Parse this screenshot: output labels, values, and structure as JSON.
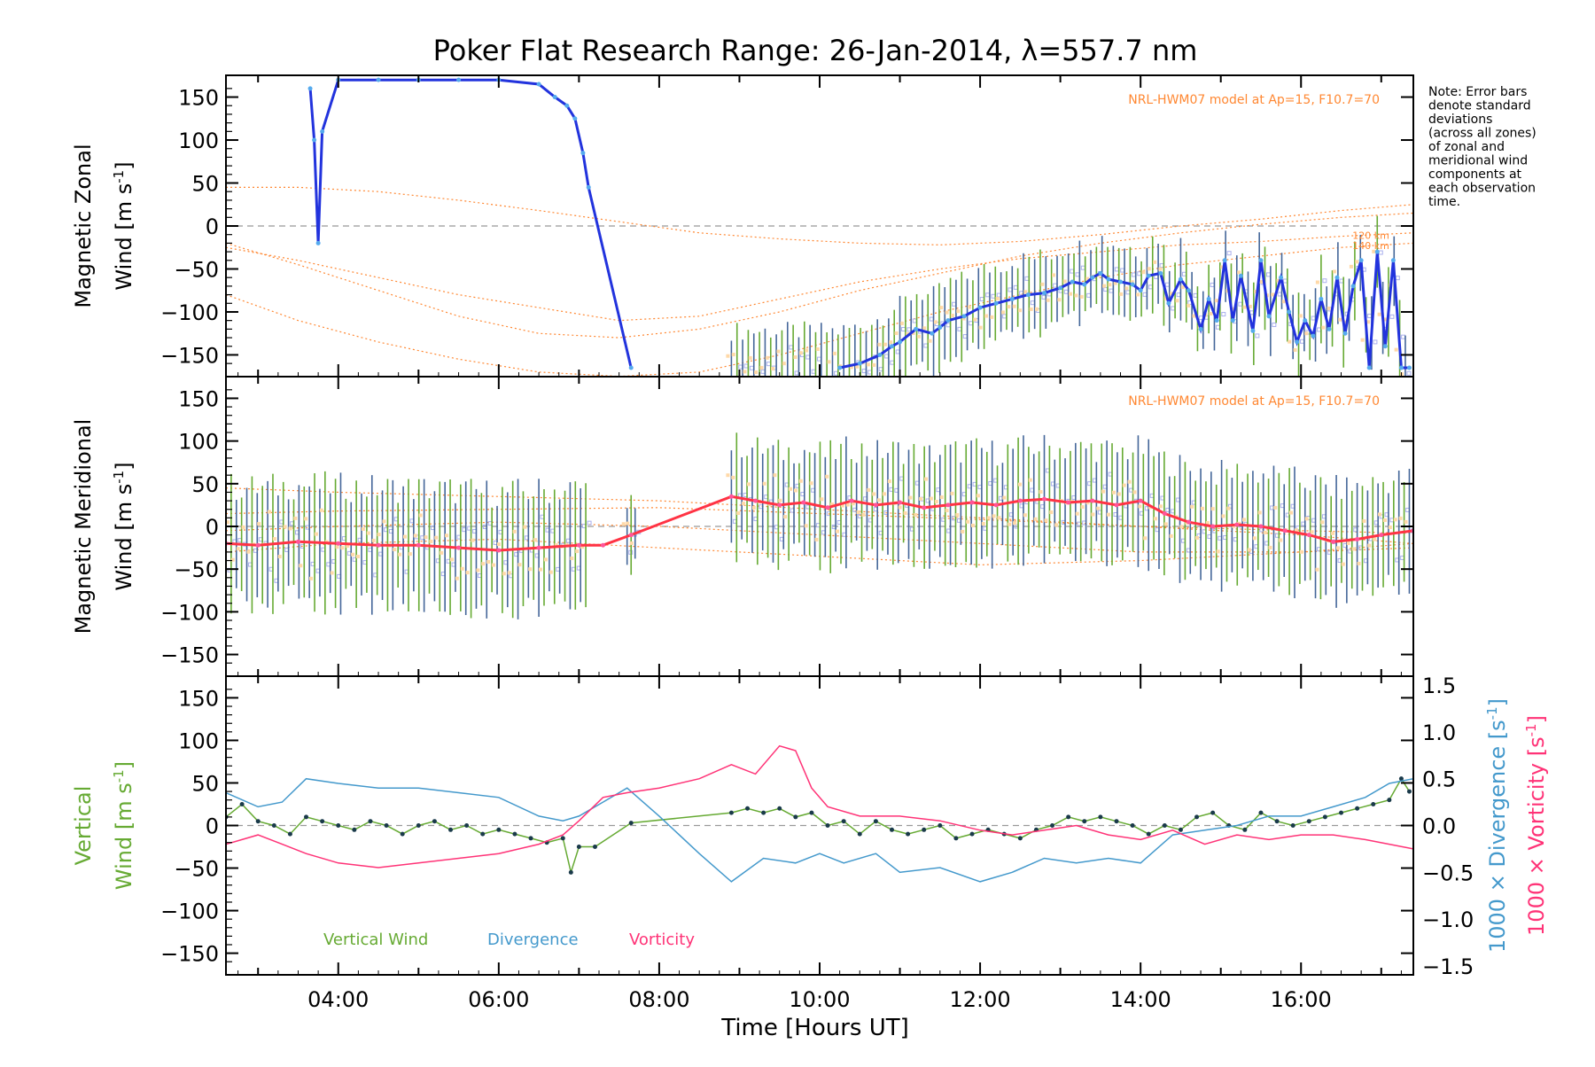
{
  "figure": {
    "title": "Poker Flat Research Range: 26-Jan-2014, λ=557.7 nm",
    "note_lines": [
      "Note: Error bars",
      "denote standard",
      "deviations",
      "(across all zones)",
      "of zonal and",
      "meridional wind",
      "components at",
      "each observation",
      "time."
    ],
    "xlabel": "Time [Hours UT]",
    "colors": {
      "zonal_line": "#2233dd",
      "zonal_points": "#55aaee",
      "meridional_line": "#ff3344",
      "meridional_points": "#ff5599",
      "errbar_green": "#66aa33",
      "errbar_blue": "#446699",
      "scatter_lavender": "#aab0ee",
      "scatter_peach": "#ffd9a8",
      "model": "#ff8833",
      "vertical": "#66aa33",
      "vertical_markers": "#1a3a4a",
      "divergence": "#4499cc",
      "vorticity": "#ff3377",
      "zero_line": "#999999"
    }
  },
  "chart_data": [
    {
      "id": "zonal",
      "type": "line",
      "ylabel_line1": "Magnetic Zonal",
      "ylabel_line2": "Wind [m s",
      "ylabel_sup": "-1",
      "ylabel_end": "]",
      "model_label": "NRL-HWM07 model at Ap=15, F10.7=70",
      "model_curve_labels": [
        "120 km",
        "140 km"
      ],
      "xlim": [
        2.6,
        17.4
      ],
      "ylim": [
        -165,
        165
      ],
      "yticks": [
        -150,
        -100,
        -50,
        0,
        50,
        100,
        150
      ],
      "series": [
        {
          "style": "zonal",
          "x": [
            3.65,
            3.7,
            3.75,
            3.8,
            4.0,
            4.5,
            5.0,
            5.5,
            6.0,
            6.5,
            6.7,
            6.85,
            6.95,
            7.05,
            7.12,
            7.65
          ],
          "y": [
            160,
            100,
            -20,
            110,
            170,
            170,
            170,
            170,
            170,
            165,
            150,
            140,
            125,
            85,
            45,
            -165
          ],
          "gaps_after": [
            0
          ]
        },
        {
          "style": "zonal",
          "x": [
            10.25,
            10.5,
            10.75,
            10.9,
            11.0,
            11.2,
            11.4,
            11.5,
            11.6,
            11.8,
            12.0,
            12.2,
            12.4,
            12.6,
            12.8,
            13.0,
            13.15,
            13.3,
            13.4,
            13.5,
            13.6,
            13.75,
            13.9,
            14.0,
            14.1,
            14.25,
            14.35,
            14.5,
            14.6,
            14.75,
            14.85,
            14.95,
            15.05,
            15.15,
            15.25,
            15.4,
            15.5,
            15.6,
            15.75,
            15.85,
            15.95,
            16.05,
            16.15,
            16.25,
            16.35,
            16.45,
            16.55,
            16.65,
            16.75,
            16.85,
            16.95,
            17.05,
            17.15,
            17.25,
            17.35
          ],
          "y": [
            -165,
            -160,
            -150,
            -140,
            -135,
            -120,
            -125,
            -118,
            -110,
            -105,
            -95,
            -90,
            -85,
            -80,
            -78,
            -72,
            -65,
            -68,
            -60,
            -55,
            -62,
            -65,
            -68,
            -75,
            -58,
            -55,
            -90,
            -62,
            -75,
            -120,
            -85,
            -110,
            -40,
            -110,
            -58,
            -122,
            -40,
            -105,
            -60,
            -100,
            -135,
            -110,
            -128,
            -85,
            -120,
            -60,
            -125,
            -70,
            -40,
            -165,
            -30,
            -140,
            -40,
            -165,
            -165
          ]
        }
      ],
      "model_curves": [
        {
          "x": [
            2.6,
            3.5,
            4.5,
            5.5,
            6.5,
            7.5,
            8.5,
            9.5,
            10.5,
            11.5,
            12.5,
            13.5,
            14.5,
            15.5,
            16.5,
            17.4
          ],
          "y": [
            45,
            45,
            40,
            30,
            18,
            5,
            -8,
            -15,
            -20,
            -22,
            -18,
            -10,
            0,
            8,
            18,
            25
          ]
        },
        {
          "x": [
            2.6,
            3.5,
            4.5,
            5.5,
            6.5,
            7.5,
            8.5,
            9.5,
            10.5,
            11.5,
            12.5,
            13.5,
            14.5,
            15.5,
            16.5,
            17.4
          ],
          "y": [
            -20,
            -45,
            -75,
            -105,
            -125,
            -130,
            -120,
            -100,
            -75,
            -55,
            -35,
            -20,
            -8,
            2,
            10,
            15
          ]
        },
        {
          "x": [
            2.6,
            3.5,
            4.5,
            5.5,
            6.5,
            7.5,
            8.5,
            9.5,
            10.5,
            11.5,
            12.5,
            13.5,
            14.5,
            15.5,
            16.5,
            17.4
          ],
          "y": [
            -25,
            -40,
            -60,
            -80,
            -95,
            -110,
            -105,
            -85,
            -65,
            -50,
            -38,
            -30,
            -22,
            -18,
            -12,
            -8
          ]
        },
        {
          "x": [
            2.6,
            3.5,
            4.5,
            5.5,
            6.5,
            7.5,
            8.5,
            9.5,
            10.5,
            11.5,
            12.5,
            13.5,
            14.5,
            15.5,
            16.5,
            17.4
          ],
          "y": [
            -80,
            -110,
            -135,
            -155,
            -170,
            -175,
            -170,
            -150,
            -125,
            -100,
            -80,
            -60,
            -45,
            -35,
            -25,
            -20
          ]
        }
      ],
      "errbars": {
        "start": 8.9,
        "end": 17.35,
        "step": 0.07,
        "half": 45,
        "color_alt": true
      }
    },
    {
      "id": "meridional",
      "type": "line",
      "ylabel_line1": "Magnetic Meridional",
      "ylabel_line2": "Wind [m s",
      "ylabel_sup": "-1",
      "ylabel_end": "]",
      "model_label": "NRL-HWM07 model at Ap=15, F10.7=70",
      "xlim": [
        2.6,
        17.4
      ],
      "ylim": [
        -165,
        165
      ],
      "yticks": [
        -150,
        -100,
        -50,
        0,
        50,
        100,
        150
      ],
      "series": [
        {
          "style": "meridional",
          "x": [
            2.6,
            3.0,
            3.5,
            4.0,
            4.5,
            5.0,
            5.5,
            6.0,
            6.5,
            7.0,
            7.3,
            7.65,
            8.9,
            9.2,
            9.5,
            9.8,
            10.1,
            10.4,
            10.7,
            11.0,
            11.3,
            11.6,
            11.9,
            12.2,
            12.5,
            12.8,
            13.1,
            13.4,
            13.7,
            14.0,
            14.3,
            14.6,
            14.9,
            15.2,
            15.5,
            15.8,
            16.1,
            16.4,
            16.7,
            17.0,
            17.4
          ],
          "y": [
            -20,
            -22,
            -18,
            -20,
            -22,
            -22,
            -25,
            -28,
            -25,
            -22,
            -22,
            -10,
            35,
            30,
            25,
            28,
            22,
            30,
            25,
            28,
            22,
            25,
            28,
            25,
            30,
            32,
            28,
            30,
            25,
            30,
            15,
            5,
            0,
            2,
            0,
            -5,
            -10,
            -18,
            -15,
            -10,
            -5
          ]
        }
      ],
      "model_curves": [
        {
          "x": [
            2.6,
            4,
            6,
            8,
            10,
            12,
            14,
            16,
            17.4
          ],
          "y": [
            45,
            40,
            35,
            30,
            20,
            10,
            0,
            -10,
            -20
          ]
        },
        {
          "x": [
            2.6,
            4,
            6,
            8,
            10,
            12,
            14,
            16,
            17.4
          ],
          "y": [
            15,
            18,
            20,
            22,
            15,
            8,
            0,
            -5,
            -8
          ]
        },
        {
          "x": [
            2.6,
            4,
            6,
            8,
            10,
            12,
            14,
            16,
            17.4
          ],
          "y": [
            -5,
            0,
            5,
            0,
            -10,
            -20,
            -30,
            -30,
            -25
          ]
        },
        {
          "x": [
            2.6,
            4,
            6,
            8,
            10,
            12,
            14,
            16,
            17.4
          ],
          "y": [
            -30,
            -20,
            -15,
            -25,
            -35,
            -45,
            -40,
            -30,
            -20
          ]
        }
      ],
      "errbar_segments": [
        {
          "start": 2.6,
          "end": 7.15,
          "step": 0.065,
          "half": 70
        },
        {
          "start": 7.6,
          "end": 7.7,
          "step": 0.05,
          "half": 40
        },
        {
          "start": 8.9,
          "end": 17.35,
          "step": 0.065,
          "half": 65
        }
      ]
    },
    {
      "id": "vertical",
      "type": "line",
      "ylabel_line1": "Vertical",
      "ylabel_line2": "Wind [m s",
      "ylabel_sup": "-1",
      "ylabel_end": "]",
      "right_label_div": "1000 × Divergence [s",
      "right_label_vort": "1000 × Vorticity [s",
      "right_sup": "-1",
      "right_end": "]",
      "legend": [
        {
          "label": "Vertical Wind",
          "color": "#66aa33"
        },
        {
          "label": "Divergence",
          "color": "#4499cc"
        },
        {
          "label": "Vorticity",
          "color": "#ff3377"
        }
      ],
      "xlim": [
        2.6,
        17.4
      ],
      "ylim": [
        -165,
        165
      ],
      "y2lim": [
        -1.5,
        1.5
      ],
      "yticks": [
        -150,
        -100,
        -50,
        0,
        50,
        100,
        150
      ],
      "y2ticks": [
        "-1.5",
        "-1.0",
        "-0.5",
        "0.0",
        "0.5",
        "1.0",
        "1.5"
      ],
      "y2tick_values": [
        -1.5,
        -1.0,
        -0.5,
        0.0,
        0.5,
        1.0,
        1.5
      ],
      "xticks": [
        4,
        6,
        8,
        10,
        12,
        14,
        16
      ],
      "xticklabels": [
        "04:00",
        "06:00",
        "08:00",
        "10:00",
        "12:00",
        "14:00",
        "16:00"
      ],
      "series": [
        {
          "name": "Vertical Wind",
          "style": "vertical",
          "x": [
            2.6,
            2.8,
            3.0,
            3.2,
            3.4,
            3.6,
            3.8,
            4.0,
            4.2,
            4.4,
            4.6,
            4.8,
            5.0,
            5.2,
            5.4,
            5.6,
            5.8,
            6.0,
            6.2,
            6.4,
            6.6,
            6.8,
            6.9,
            7.0,
            7.2,
            7.65,
            8.9,
            9.1,
            9.3,
            9.5,
            9.7,
            9.9,
            10.1,
            10.3,
            10.5,
            10.7,
            10.9,
            11.1,
            11.3,
            11.5,
            11.7,
            11.9,
            12.1,
            12.3,
            12.5,
            12.7,
            12.9,
            13.1,
            13.3,
            13.5,
            13.7,
            13.9,
            14.1,
            14.3,
            14.5,
            14.7,
            14.9,
            15.1,
            15.3,
            15.5,
            15.7,
            15.9,
            16.1,
            16.3,
            16.5,
            16.7,
            16.9,
            17.1,
            17.25,
            17.35
          ],
          "y": [
            10,
            25,
            5,
            0,
            -10,
            10,
            5,
            0,
            -5,
            5,
            0,
            -10,
            0,
            5,
            -5,
            0,
            -10,
            -5,
            -10,
            -15,
            -20,
            -15,
            -55,
            -25,
            -25,
            3,
            15,
            20,
            15,
            20,
            10,
            15,
            0,
            5,
            -10,
            5,
            -5,
            -10,
            -5,
            0,
            -15,
            -10,
            -5,
            -10,
            -15,
            -5,
            0,
            10,
            5,
            10,
            5,
            0,
            -10,
            0,
            -5,
            10,
            15,
            0,
            -5,
            15,
            5,
            0,
            5,
            10,
            15,
            20,
            25,
            30,
            55,
            40
          ]
        },
        {
          "name": "Divergence",
          "style": "divergence",
          "axis": "y2",
          "x": [
            2.6,
            3.0,
            3.3,
            3.6,
            4.0,
            4.5,
            5.0,
            5.5,
            6.0,
            6.5,
            6.8,
            7.0,
            7.3,
            7.6,
            8.0,
            8.5,
            8.9,
            9.3,
            9.7,
            10.0,
            10.3,
            10.7,
            11.0,
            11.5,
            12.0,
            12.4,
            12.8,
            13.2,
            13.6,
            14.0,
            14.4,
            14.8,
            15.2,
            15.6,
            16.0,
            16.4,
            16.8,
            17.1,
            17.4
          ],
          "y": [
            0.35,
            0.2,
            0.25,
            0.5,
            0.45,
            0.4,
            0.4,
            0.35,
            0.3,
            0.1,
            0.05,
            0.1,
            0.25,
            0.4,
            0.1,
            -0.3,
            -0.6,
            -0.35,
            -0.4,
            -0.3,
            -0.4,
            -0.3,
            -0.5,
            -0.45,
            -0.6,
            -0.5,
            -0.35,
            -0.4,
            -0.35,
            -0.4,
            -0.1,
            -0.05,
            0.0,
            0.1,
            0.1,
            0.2,
            0.3,
            0.45,
            0.5
          ]
        },
        {
          "name": "Vorticity",
          "style": "vorticity",
          "axis": "y2",
          "x": [
            2.6,
            3.0,
            3.3,
            3.6,
            4.0,
            4.5,
            5.0,
            5.5,
            6.0,
            6.5,
            6.8,
            7.0,
            7.3,
            7.6,
            8.0,
            8.5,
            8.9,
            9.2,
            9.5,
            9.7,
            9.9,
            10.1,
            10.5,
            11.0,
            11.5,
            12.0,
            12.4,
            12.8,
            13.2,
            13.6,
            14.0,
            14.4,
            14.8,
            15.2,
            15.6,
            16.0,
            16.4,
            16.8,
            17.1,
            17.4
          ],
          "y": [
            -0.2,
            -0.1,
            -0.2,
            -0.3,
            -0.4,
            -0.45,
            -0.4,
            -0.35,
            -0.3,
            -0.2,
            -0.1,
            0.05,
            0.3,
            0.35,
            0.4,
            0.5,
            0.65,
            0.55,
            0.85,
            0.8,
            0.4,
            0.2,
            0.1,
            0.1,
            0.05,
            -0.05,
            -0.1,
            -0.05,
            0.0,
            -0.1,
            -0.15,
            -0.05,
            -0.2,
            -0.1,
            -0.15,
            -0.1,
            -0.1,
            -0.15,
            -0.2,
            -0.25
          ]
        }
      ]
    }
  ]
}
